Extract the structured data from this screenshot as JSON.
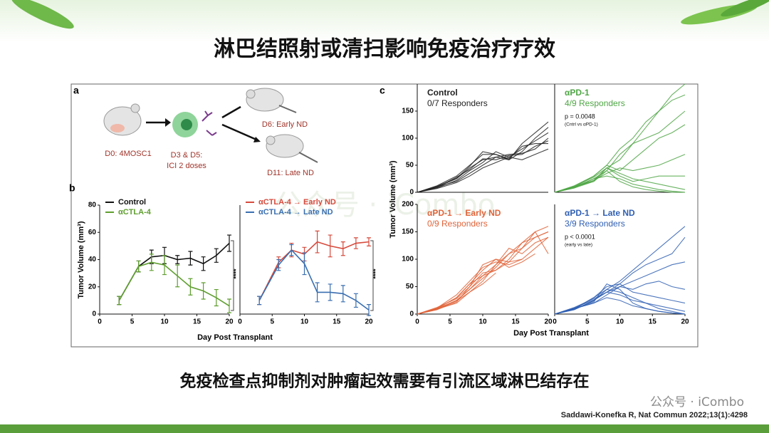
{
  "header": {
    "title": "淋巴结照射或清扫影响免疫治疗疗效"
  },
  "figure": {
    "watermark": "公众号 · iCombo",
    "panel_a": {
      "label": "a",
      "steps": [
        "D0: 4MOSC1",
        "D3 & D5:",
        "ICI 2 doses",
        "D6: Early ND",
        "D11: Late ND"
      ]
    },
    "panel_b": {
      "label": "b",
      "xlabel": "Day Post Transplant",
      "ylabel": "Tumor Volume (mm³)",
      "plots": [
        {
          "type": "line",
          "significance": "****",
          "x": [
            3,
            6,
            8,
            10,
            12,
            14,
            16,
            18,
            20
          ],
          "xlim": [
            0,
            20
          ],
          "xticks": [
            0,
            5,
            10,
            15,
            20
          ],
          "ylim": [
            0,
            80
          ],
          "yticks": [
            0,
            20,
            40,
            60,
            80
          ],
          "series": [
            {
              "name": "Control",
              "color": "#111111",
              "values": [
                10,
                35,
                42,
                43,
                40,
                41,
                37,
                43,
                52
              ],
              "errors": [
                3,
                4,
                5,
                6,
                3,
                5,
                5,
                5,
                6
              ]
            },
            {
              "name": "αCTLA-4",
              "color": "#5f9e2f",
              "values": [
                10,
                35,
                38,
                36,
                28,
                20,
                17,
                12,
                6
              ],
              "errors": [
                3,
                4,
                6,
                7,
                8,
                6,
                6,
                6,
                5
              ]
            }
          ]
        },
        {
          "type": "line",
          "significance": "****",
          "x": [
            3,
            6,
            8,
            10,
            12,
            14,
            16,
            18,
            20
          ],
          "xlim": [
            0,
            20
          ],
          "xticks": [
            0,
            5,
            10,
            15,
            20
          ],
          "ylim": [
            0,
            80
          ],
          "series": [
            {
              "name": "αCTLA-4 → Early  ND",
              "color": "#d64a3c",
              "values": [
                10,
                38,
                47,
                44,
                53,
                50,
                48,
                52,
                53
              ],
              "errors": [
                3,
                4,
                5,
                5,
                8,
                8,
                5,
                4,
                3
              ]
            },
            {
              "name": "αCTLA-4 → Late ND",
              "color": "#3a6fb0",
              "values": [
                10,
                36,
                47,
                37,
                16,
                16,
                15,
                10,
                3
              ],
              "errors": [
                3,
                4,
                4,
                8,
                7,
                6,
                6,
                5,
                4
              ]
            }
          ]
        }
      ]
    },
    "panel_c": {
      "label": "c",
      "xlabel": "Day Post Transplant",
      "ylabel": "Tumor Volume (mm³)",
      "plots": [
        {
          "type": "line",
          "title": "Control",
          "annotation": "0/7 Responders",
          "color": "#222222",
          "x": [
            0,
            3,
            6,
            8,
            10,
            12,
            14,
            16,
            18,
            20
          ],
          "xlim": [
            0,
            20
          ],
          "ylim": [
            0,
            200
          ],
          "yticks": [
            0,
            50,
            100,
            150
          ],
          "series": [
            {
              "values": [
                0,
                10,
                25,
                45,
                60,
                65,
                60,
                75,
                100,
                120
              ]
            },
            {
              "values": [
                0,
                8,
                22,
                40,
                55,
                75,
                65,
                80,
                95,
                110
              ]
            },
            {
              "values": [
                0,
                12,
                30,
                50,
                70,
                70,
                60,
                90,
                110,
                130
              ]
            },
            {
              "values": [
                0,
                9,
                28,
                42,
                62,
                60,
                68,
                70,
                85,
                95
              ]
            },
            {
              "values": [
                0,
                10,
                20,
                35,
                50,
                65,
                70,
                72,
                80,
                100
              ]
            },
            {
              "values": [
                0,
                11,
                26,
                48,
                75,
                70,
                62,
                85,
                90,
                90
              ]
            },
            {
              "values": [
                0,
                7,
                18,
                30,
                45,
                55,
                65,
                60,
                70,
                80
              ]
            }
          ]
        },
        {
          "type": "line",
          "title": "αPD-1",
          "annotation": "4/9 Responders",
          "p_value": "p = 0.0048",
          "p_note": "(Cntrl vs αPD-1)",
          "color": "#4fa645",
          "x": [
            0,
            3,
            6,
            8,
            10,
            12,
            14,
            16,
            18,
            20
          ],
          "xlim": [
            0,
            20
          ],
          "ylim": [
            0,
            200
          ],
          "series": [
            {
              "values": [
                0,
                10,
                25,
                40,
                70,
                90,
                120,
                150,
                180,
                200
              ]
            },
            {
              "values": [
                0,
                12,
                30,
                50,
                80,
                100,
                130,
                150,
                170,
                180
              ]
            },
            {
              "values": [
                0,
                8,
                20,
                45,
                60,
                90,
                100,
                110,
                130,
                150
              ]
            },
            {
              "values": [
                0,
                10,
                30,
                50,
                40,
                60,
                80,
                100,
                110,
                125
              ]
            },
            {
              "values": [
                0,
                9,
                22,
                35,
                45,
                40,
                45,
                50,
                60,
                70
              ]
            },
            {
              "values": [
                0,
                11,
                28,
                45,
                30,
                20,
                25,
                30,
                30,
                30
              ]
            },
            {
              "values": [
                0,
                10,
                20,
                40,
                20,
                10,
                5,
                2,
                0,
                0
              ]
            },
            {
              "values": [
                0,
                8,
                25,
                30,
                25,
                15,
                10,
                5,
                2,
                0
              ]
            },
            {
              "values": [
                0,
                10,
                22,
                45,
                35,
                25,
                20,
                15,
                10,
                5
              ]
            }
          ]
        },
        {
          "type": "line",
          "title": "αPD-1 → Early ND",
          "annotation": "0/9 Responders",
          "color": "#e0643a",
          "x": [
            0,
            3,
            6,
            8,
            10,
            12,
            14,
            16,
            18,
            20
          ],
          "xlim": [
            0,
            20
          ],
          "xticks": [
            0,
            5,
            10,
            15,
            20
          ],
          "ylim": [
            0,
            200
          ],
          "yticks": [
            0,
            50,
            100,
            150,
            200
          ],
          "series": [
            {
              "values": [
                0,
                8,
                25,
                45,
                70,
                90,
                110,
                120,
                140,
                150
              ]
            },
            {
              "values": [
                0,
                10,
                30,
                55,
                80,
                100,
                95,
                120,
                150,
                160
              ]
            },
            {
              "values": [
                0,
                12,
                28,
                50,
                75,
                80,
                100,
                130,
                140,
                150
              ]
            },
            {
              "values": [
                0,
                9,
                20,
                40,
                60,
                90,
                120,
                110,
                130,
                140
              ]
            },
            {
              "values": [
                0,
                11,
                35,
                60,
                85,
                95,
                90,
                100,
                120,
                140
              ]
            },
            {
              "values": [
                0,
                10,
                25,
                45,
                65,
                85,
                110,
                130,
                150,
                110
              ]
            },
            {
              "values": [
                0,
                8,
                22,
                50,
                90,
                100,
                85,
                95,
                110,
                null
              ]
            },
            {
              "values": [
                0,
                10,
                30,
                55,
                70,
                80,
                95,
                100,
                null,
                null
              ]
            },
            {
              "values": [
                0,
                9,
                24,
                40,
                55,
                75,
                null,
                null,
                null,
                null
              ]
            }
          ]
        },
        {
          "type": "line",
          "title": "αPD-1 → Late ND",
          "annotation": "3/9 Responders",
          "p_value": "p < 0.0001",
          "p_note": "(early vs late)",
          "color": "#2f5fb3",
          "x": [
            0,
            3,
            6,
            8,
            10,
            12,
            14,
            16,
            18,
            20
          ],
          "xlim": [
            0,
            20
          ],
          "xticks": [
            0,
            5,
            10,
            15,
            20
          ],
          "ylim": [
            0,
            200
          ],
          "series": [
            {
              "values": [
                0,
                10,
                30,
                45,
                60,
                80,
                100,
                120,
                140,
                160
              ]
            },
            {
              "values": [
                0,
                12,
                28,
                40,
                55,
                75,
                90,
                100,
                110,
                140
              ]
            },
            {
              "values": [
                0,
                8,
                25,
                40,
                50,
                60,
                70,
                80,
                90,
                95
              ]
            },
            {
              "values": [
                0,
                10,
                20,
                35,
                50,
                45,
                55,
                60,
                50,
                45
              ]
            },
            {
              "values": [
                0,
                9,
                30,
                50,
                55,
                40,
                35,
                30,
                25,
                20
              ]
            },
            {
              "values": [
                0,
                11,
                26,
                40,
                35,
                25,
                20,
                15,
                10,
                5
              ]
            },
            {
              "values": [
                0,
                10,
                20,
                30,
                25,
                15,
                10,
                5,
                2,
                0
              ]
            },
            {
              "values": [
                0,
                8,
                24,
                45,
                40,
                30,
                20,
                10,
                5,
                0
              ]
            },
            {
              "values": [
                0,
                10,
                22,
                55,
                45,
                20,
                10,
                5,
                2,
                0
              ]
            }
          ]
        }
      ]
    }
  },
  "caption": "免疫检查点抑制剂对肿瘤起效需要有引流区域淋巴结存在",
  "watermark": "公众号 · iCombo",
  "citation": "Saddawi-Konefka R, Nat Commun 2022;13(1):4298"
}
